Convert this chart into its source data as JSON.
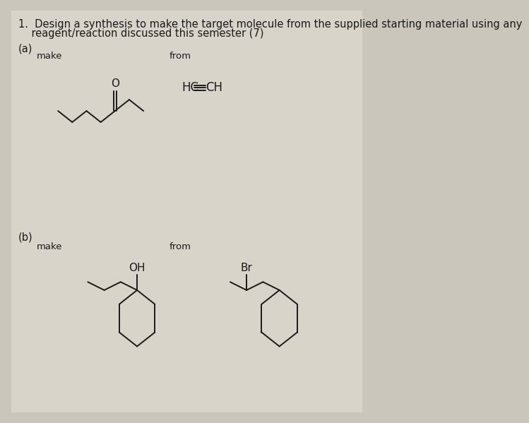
{
  "background_color": "#cac6bc",
  "paper_color": "#d8d4ca",
  "title_line1": "1.  Design a synthesis to make the target molecule from the supplied starting material using any",
  "title_line2": "    reagent/reaction discussed this semester (7)",
  "part_a_label": "(a)",
  "part_b_label": "(b)",
  "make_label": "make",
  "from_label": "from",
  "oh_label": "OH",
  "br_label": "Br",
  "font_size_title": 10.5,
  "font_size_labels": 9.5,
  "font_size_chem": 11,
  "text_color": "#1a1a1a"
}
